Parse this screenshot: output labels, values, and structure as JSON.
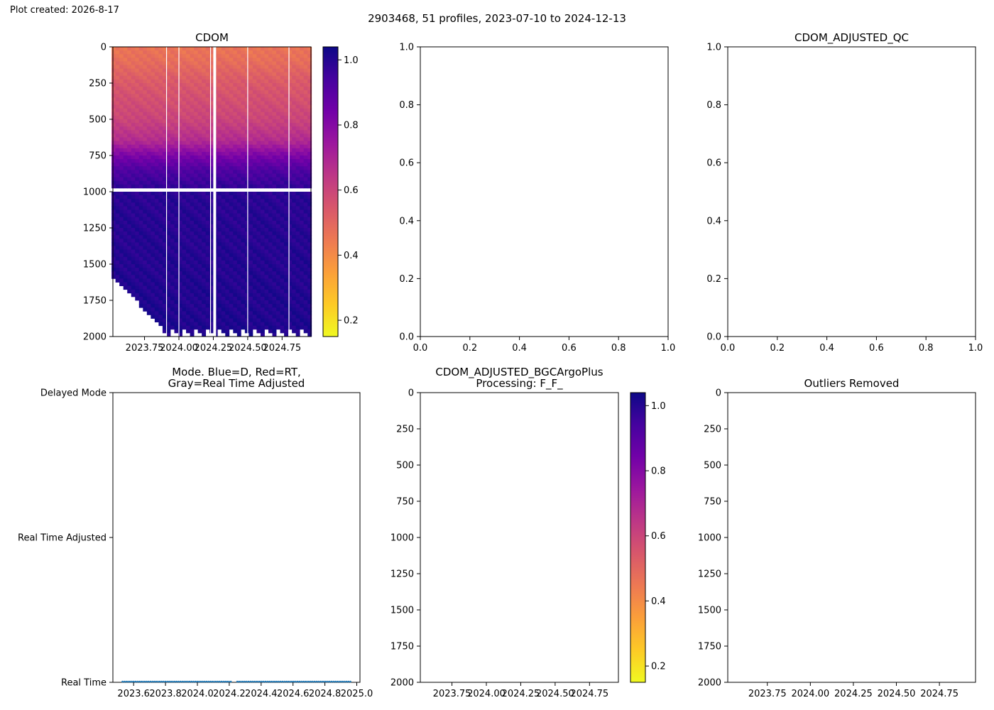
{
  "header": {
    "created": "Plot created: 2026-8-17",
    "suptitle": "2903468, 51 profiles, 2023-07-10 to 2024-12-13"
  },
  "colors": {
    "cmap": [
      "#f0f921",
      "#fdca26",
      "#fb9f3a",
      "#ed7953",
      "#d8576b",
      "#bd3786",
      "#9c179e",
      "#7201a8",
      "#46039f",
      "#0d0887"
    ],
    "mode_dots": "#1f77b4",
    "axis": "#000000",
    "background": "#ffffff"
  },
  "chart_data": [
    {
      "id": "cdom",
      "type": "heatmap",
      "title": "CDOM",
      "xlabel": "",
      "ylabel": "",
      "xlim": [
        2023.52,
        2024.96
      ],
      "ylim": [
        2000,
        0
      ],
      "xticks": [
        "2023.75",
        "2024.00",
        "2024.25",
        "2024.50",
        "2024.75"
      ],
      "yticks": [
        "0",
        "250",
        "500",
        "750",
        "1000",
        "1250",
        "1500",
        "1750",
        "2000"
      ],
      "profile_start": "2023-07-10",
      "profile_end": "2024-12-13",
      "profile_count": 51,
      "value_profile": [
        {
          "pressure": 0,
          "value": 0.46
        },
        {
          "pressure": 100,
          "value": 0.48
        },
        {
          "pressure": 250,
          "value": 0.54
        },
        {
          "pressure": 500,
          "value": 0.6
        },
        {
          "pressure": 650,
          "value": 0.68
        },
        {
          "pressure": 750,
          "value": 0.82
        },
        {
          "pressure": 850,
          "value": 0.92
        },
        {
          "pressure": 1000,
          "value": 0.99
        },
        {
          "pressure": 2000,
          "value": 1.01
        }
      ],
      "gap_pressure_range": [
        975,
        1000
      ],
      "colorbar": {
        "range": [
          0.15,
          1.04
        ],
        "ticks": [
          "0.2",
          "0.4",
          "0.6",
          "0.8",
          "1.0"
        ],
        "colormap": "plasma_r"
      }
    },
    {
      "id": "empty-top-middle",
      "type": "scatter",
      "title": "",
      "xlim": [
        0,
        1
      ],
      "ylim": [
        0,
        1
      ],
      "xticks": [
        "0.0",
        "0.2",
        "0.4",
        "0.6",
        "0.8",
        "1.0"
      ],
      "yticks": [
        "0.0",
        "0.2",
        "0.4",
        "0.6",
        "0.8",
        "1.0"
      ]
    },
    {
      "id": "cdom-adjusted-qc",
      "type": "scatter",
      "title": "CDOM_ADJUSTED_QC",
      "xlim": [
        0,
        1
      ],
      "ylim": [
        0,
        1
      ],
      "xticks": [
        "0.0",
        "0.2",
        "0.4",
        "0.6",
        "0.8",
        "1.0"
      ],
      "yticks": [
        "0.0",
        "0.2",
        "0.4",
        "0.6",
        "0.8",
        "1.0"
      ]
    },
    {
      "id": "mode",
      "type": "scatter",
      "title": "Mode. Blue=D, Red=RT,\nGray=Real Time Adjusted",
      "xlim": [
        2023.47,
        2025.02
      ],
      "xticks": [
        "2023.6",
        "2023.8",
        "2024.0",
        "2024.2",
        "2024.4",
        "2024.6",
        "2024.8",
        "2025.0"
      ],
      "ycategories": [
        "Delayed Mode",
        "Real Time Adjusted",
        "Real Time"
      ],
      "points": [
        {
          "x_range": [
            2023.53,
            2024.21
          ],
          "mode": "Real Time"
        },
        {
          "x_range": [
            2024.25,
            2024.96
          ],
          "mode": "Real Time"
        }
      ]
    },
    {
      "id": "cdom-adjusted-bgcargoplus",
      "type": "heatmap",
      "title": "CDOM_ADJUSTED_BGCArgoPlus\nProcessing: F_F_",
      "xlim": [
        2023.52,
        2024.96
      ],
      "ylim": [
        2000,
        0
      ],
      "xticks": [
        "2023.75",
        "2024.00",
        "2024.25",
        "2024.50",
        "2024.75"
      ],
      "yticks": [
        "0",
        "250",
        "500",
        "750",
        "1000",
        "1250",
        "1500",
        "1750",
        "2000"
      ],
      "colorbar": {
        "range": [
          0.15,
          1.04
        ],
        "ticks": [
          "0.2",
          "0.4",
          "0.6",
          "0.8",
          "1.0"
        ],
        "colormap": "plasma_r"
      }
    },
    {
      "id": "outliers-removed",
      "type": "scatter",
      "title": "Outliers Removed",
      "xlim": [
        2023.52,
        2024.96
      ],
      "ylim": [
        2000,
        0
      ],
      "xticks": [
        "2023.75",
        "2024.00",
        "2024.25",
        "2024.50",
        "2024.75"
      ],
      "yticks": [
        "0",
        "250",
        "500",
        "750",
        "1000",
        "1250",
        "1500",
        "1750",
        "2000"
      ]
    }
  ]
}
